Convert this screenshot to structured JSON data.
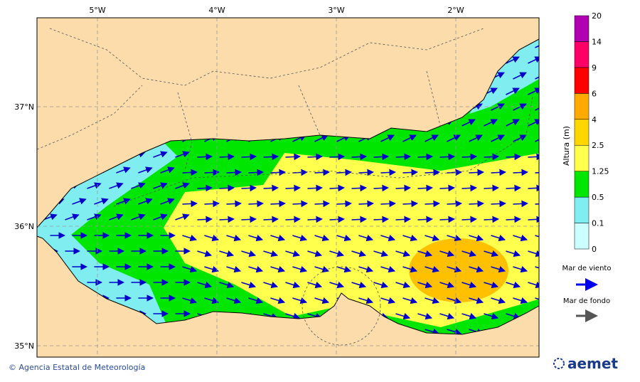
{
  "map": {
    "lon_labels": [
      "5°W",
      "4°W",
      "3°W",
      "2°W"
    ],
    "lat_labels": [
      "37°N",
      "36°N",
      "35°N"
    ],
    "colorbar": {
      "title": "Altura (m)",
      "levels": [
        0,
        0.1,
        0.5,
        1.25,
        2.5,
        4,
        6,
        9,
        14,
        20
      ]
    },
    "legend": {
      "wind_sea": "Mar de viento",
      "swell": "Mar de fondo"
    },
    "footer": {
      "credit": "© Agencia Estatal de Meteorología",
      "logo": "aemet"
    }
  }
}
